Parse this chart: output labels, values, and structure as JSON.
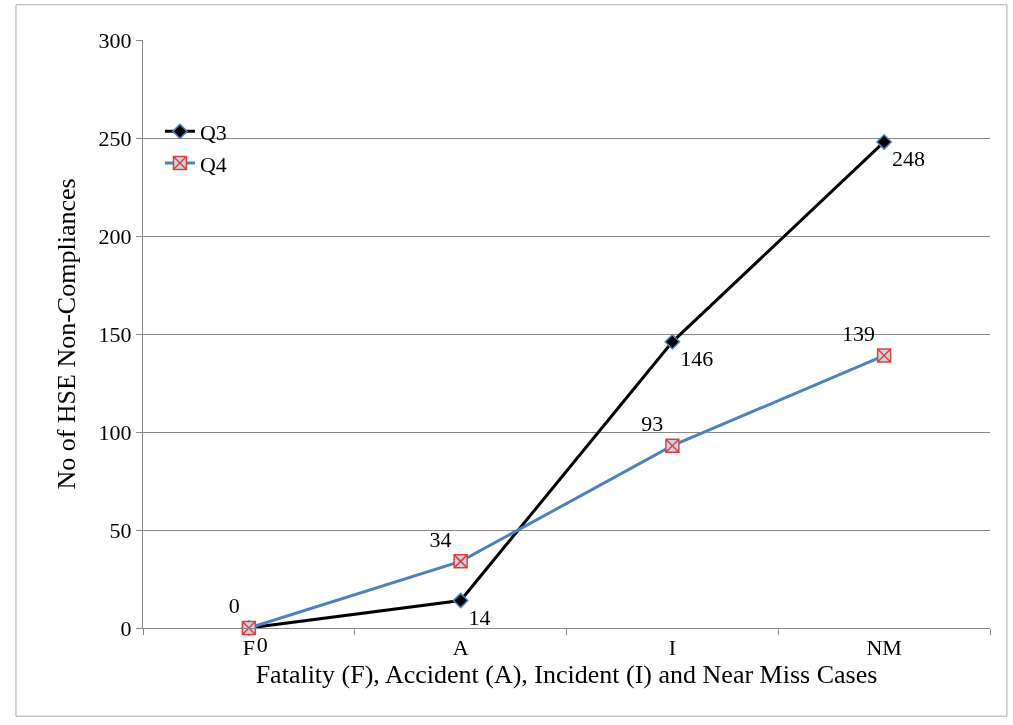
{
  "chart_data": {
    "type": "line",
    "xlabel": "Fatality (F), Accident (A), Incident (I) and Near Miss Cases",
    "ylabel": "No of HSE Non-Compliances",
    "categories": [
      "F",
      "A",
      "I",
      "NM"
    ],
    "series": [
      {
        "name": "Q3",
        "color": "#000000",
        "values": [
          0,
          14,
          146,
          248
        ],
        "marker": "diamond"
      },
      {
        "name": "Q4",
        "color": "#4f81bd",
        "values": [
          0,
          34,
          93,
          139
        ],
        "marker": "cross"
      }
    ],
    "ylim": [
      0,
      300
    ],
    "yticks": [
      0,
      50,
      100,
      150,
      200,
      250,
      300
    ],
    "grid": "y",
    "legend": "top left",
    "data_labels": true
  }
}
